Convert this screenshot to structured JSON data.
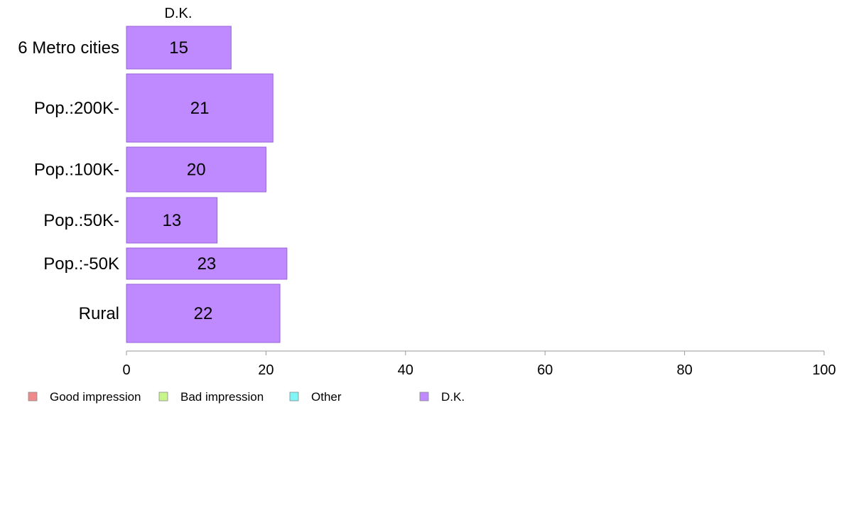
{
  "chart_data": {
    "type": "bar",
    "orientation": "horizontal",
    "column_header": "D.K.",
    "categories": [
      "6 Metro cities",
      "Pop.:200K-",
      "Pop.:100K-",
      "Pop.:50K-",
      "Pop.:-50K",
      "Rural"
    ],
    "series": [
      {
        "name": "D.K.",
        "values": [
          15,
          21,
          20,
          13,
          23,
          22
        ]
      }
    ],
    "xlim": [
      0,
      100
    ],
    "xticks": [
      0,
      20,
      40,
      60,
      80,
      100
    ],
    "grid": false,
    "legend": {
      "placement": "bottom-left",
      "entries": [
        {
          "label": "Good impression",
          "color": "#f08a8a"
        },
        {
          "label": "Bad impression",
          "color": "#c8f58a"
        },
        {
          "label": "Other",
          "color": "#7ff5f5"
        },
        {
          "label": "D.K.",
          "color": "#bf8aff"
        }
      ]
    },
    "bar_color": "#bf8aff",
    "bar_border_color": "#9a62d9"
  }
}
